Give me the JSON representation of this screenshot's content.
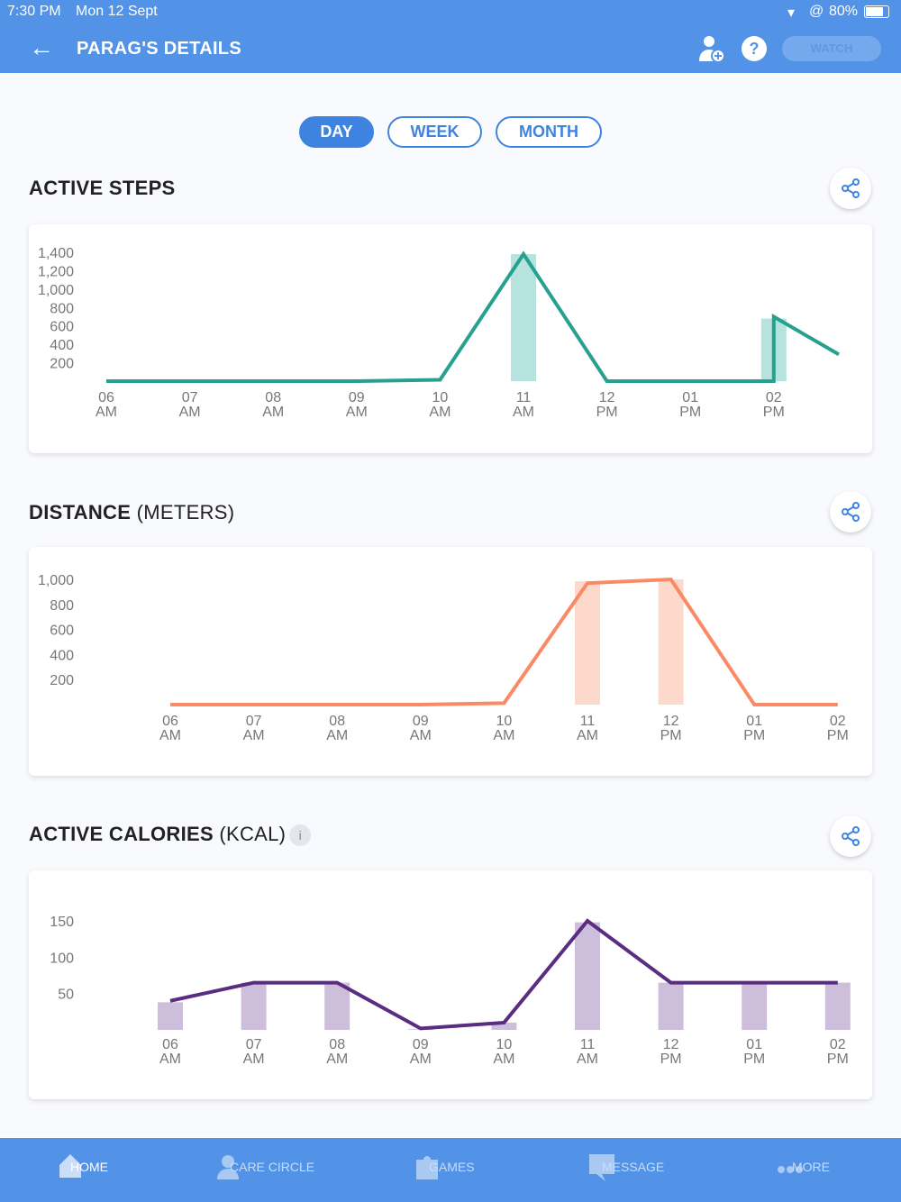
{
  "status_bar": {
    "time": "7:30 PM",
    "date": "Mon 12 Sept",
    "battery": "80%"
  },
  "header": {
    "title": "PARAG'S DETAILS",
    "watch_label": "WATCH"
  },
  "range_tabs": [
    {
      "label": "DAY",
      "active": true
    },
    {
      "label": "WEEK",
      "active": false
    },
    {
      "label": "MONTH",
      "active": false
    }
  ],
  "sections": {
    "steps": {
      "title": "ACTIVE STEPS"
    },
    "distance": {
      "title": "DISTANCE",
      "unit": "(METERS)"
    },
    "calories": {
      "title": "ACTIVE CALORIES",
      "unit": "(KCAL)",
      "info": "i"
    }
  },
  "colors": {
    "primary": "#5293e8",
    "steps": "#27a090",
    "distance": "#f98a65",
    "calories": "#5b2d82"
  },
  "chart_data": [
    {
      "type": "bar+line",
      "title": "ACTIVE STEPS",
      "categories": [
        [
          "06",
          "AM"
        ],
        [
          "07",
          "AM"
        ],
        [
          "08",
          "AM"
        ],
        [
          "09",
          "AM"
        ],
        [
          "10",
          "AM"
        ],
        [
          "11",
          "AM"
        ],
        [
          "12",
          "PM"
        ],
        [
          "01",
          "PM"
        ],
        [
          "02",
          "PM"
        ]
      ],
      "yticks": [
        "200",
        "400",
        "600",
        "800",
        "1,000",
        "1,200",
        "1,400"
      ],
      "ytick_values": [
        200,
        400,
        600,
        800,
        1000,
        1200,
        1400
      ],
      "ylim": [
        0,
        1400
      ],
      "bars": [
        0,
        0,
        0,
        0,
        0,
        1380,
        0,
        0,
        680
      ],
      "line": [
        [
          0,
          0
        ],
        [
          1,
          0
        ],
        [
          2,
          0
        ],
        [
          3,
          0
        ],
        [
          4,
          15
        ],
        [
          5,
          1380
        ],
        [
          6,
          0
        ],
        [
          7,
          0
        ],
        [
          8,
          0
        ],
        [
          8,
          700
        ],
        [
          8.78,
          290
        ]
      ]
    },
    {
      "type": "bar+line",
      "title": "DISTANCE (METERS)",
      "categories": [
        [
          "06",
          "AM"
        ],
        [
          "07",
          "AM"
        ],
        [
          "08",
          "AM"
        ],
        [
          "09",
          "AM"
        ],
        [
          "10",
          "AM"
        ],
        [
          "11",
          "AM"
        ],
        [
          "12",
          "PM"
        ],
        [
          "01",
          "PM"
        ],
        [
          "02",
          "PM"
        ]
      ],
      "yticks": [
        "200",
        "400",
        "600",
        "800",
        "1,000"
      ],
      "ytick_values": [
        200,
        400,
        600,
        800,
        1000
      ],
      "ylim": [
        0,
        1000
      ],
      "bars": [
        0,
        0,
        0,
        0,
        0,
        985,
        1000,
        0,
        0
      ],
      "line": [
        [
          0,
          0
        ],
        [
          1,
          0
        ],
        [
          2,
          0
        ],
        [
          3,
          0
        ],
        [
          4,
          12
        ],
        [
          5,
          970
        ],
        [
          6,
          1000
        ],
        [
          7,
          0
        ],
        [
          8,
          0
        ]
      ]
    },
    {
      "type": "bar+line",
      "title": "ACTIVE CALORIES (KCAL)",
      "categories": [
        [
          "06",
          "AM"
        ],
        [
          "07",
          "AM"
        ],
        [
          "08",
          "AM"
        ],
        [
          "09",
          "AM"
        ],
        [
          "10",
          "AM"
        ],
        [
          "11",
          "AM"
        ],
        [
          "12",
          "PM"
        ],
        [
          "01",
          "PM"
        ],
        [
          "02",
          "PM"
        ]
      ],
      "yticks": [
        "50",
        "100",
        "150"
      ],
      "ytick_values": [
        50,
        100,
        150
      ],
      "ylim": [
        0,
        150
      ],
      "bars": [
        38,
        65,
        65,
        1,
        10,
        148,
        65,
        65,
        65
      ],
      "line": [
        [
          0,
          40
        ],
        [
          1,
          65
        ],
        [
          2,
          65
        ],
        [
          3,
          2
        ],
        [
          4,
          10
        ],
        [
          5,
          150
        ],
        [
          6,
          65
        ],
        [
          7,
          65
        ],
        [
          8,
          65
        ]
      ]
    }
  ],
  "nav": [
    {
      "label": "HOME",
      "icon": "home-icon"
    },
    {
      "label": "CARE CIRCLE",
      "icon": "care-circle-icon"
    },
    {
      "label": "GAMES",
      "icon": "games-icon"
    },
    {
      "label": "MESSAGE",
      "icon": "message-icon"
    },
    {
      "label": "MORE",
      "icon": "more-icon"
    }
  ]
}
